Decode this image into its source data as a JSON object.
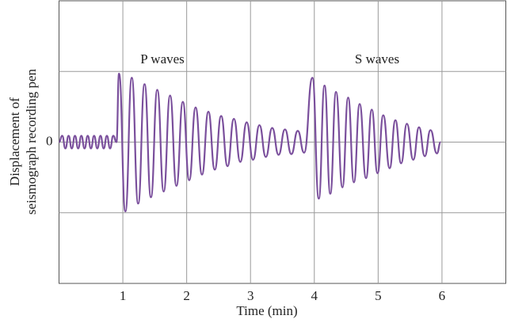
{
  "chart_data": {
    "type": "line",
    "xlabel": "Time (min)",
    "ylabel": [
      "Displacement of",
      "seismograph recording pen"
    ],
    "annotations": [
      "P waves",
      "S waves"
    ],
    "color": "#7a4f9c",
    "xlim": [
      0,
      7
    ],
    "xticks": [
      1,
      2,
      3,
      4,
      5,
      6
    ],
    "ylim": [
      -2,
      2
    ],
    "yticks": [
      0
    ],
    "ygrid": [
      -1,
      0,
      1
    ],
    "grid": true,
    "x": [
      0,
      0.05,
      0.1,
      0.15,
      0.2,
      0.25,
      0.3,
      0.35,
      0.4,
      0.45,
      0.5,
      0.55,
      0.6,
      0.65,
      0.7,
      0.75,
      0.8,
      0.85,
      0.9,
      0.94,
      1.04,
      1.14,
      1.24,
      1.34,
      1.44,
      1.54,
      1.64,
      1.74,
      1.84,
      1.94,
      2.04,
      2.14,
      2.24,
      2.34,
      2.44,
      2.54,
      2.64,
      2.74,
      2.84,
      2.94,
      3.04,
      3.14,
      3.24,
      3.34,
      3.44,
      3.54,
      3.64,
      3.74,
      3.84,
      3.97,
      4.07,
      4.16,
      4.25,
      4.34,
      4.44,
      4.53,
      4.62,
      4.71,
      4.81,
      4.9,
      4.99,
      5.08,
      5.18,
      5.27,
      5.36,
      5.45,
      5.55,
      5.64,
      5.73,
      5.82,
      5.92,
      5.98
    ],
    "values": [
      0,
      0.09,
      -0.09,
      0.09,
      -0.09,
      0.09,
      -0.09,
      0.09,
      -0.09,
      0.09,
      -0.09,
      0.09,
      -0.09,
      0.09,
      -0.09,
      0.09,
      -0.09,
      0.09,
      0,
      0.97,
      -0.98,
      0.91,
      -0.87,
      0.82,
      -0.78,
      0.74,
      -0.7,
      0.66,
      -0.62,
      0.57,
      -0.54,
      0.49,
      -0.46,
      0.43,
      -0.39,
      0.37,
      -0.34,
      0.33,
      -0.28,
      0.28,
      -0.25,
      0.24,
      -0.21,
      0.2,
      -0.18,
      0.18,
      -0.17,
      0.16,
      -0.15,
      0.91,
      -0.8,
      0.8,
      -0.73,
      0.71,
      -0.64,
      0.63,
      -0.57,
      0.54,
      -0.51,
      0.46,
      -0.44,
      0.38,
      -0.37,
      0.31,
      -0.3,
      0.26,
      -0.25,
      0.21,
      -0.2,
      0.17,
      -0.16,
      0
    ]
  }
}
